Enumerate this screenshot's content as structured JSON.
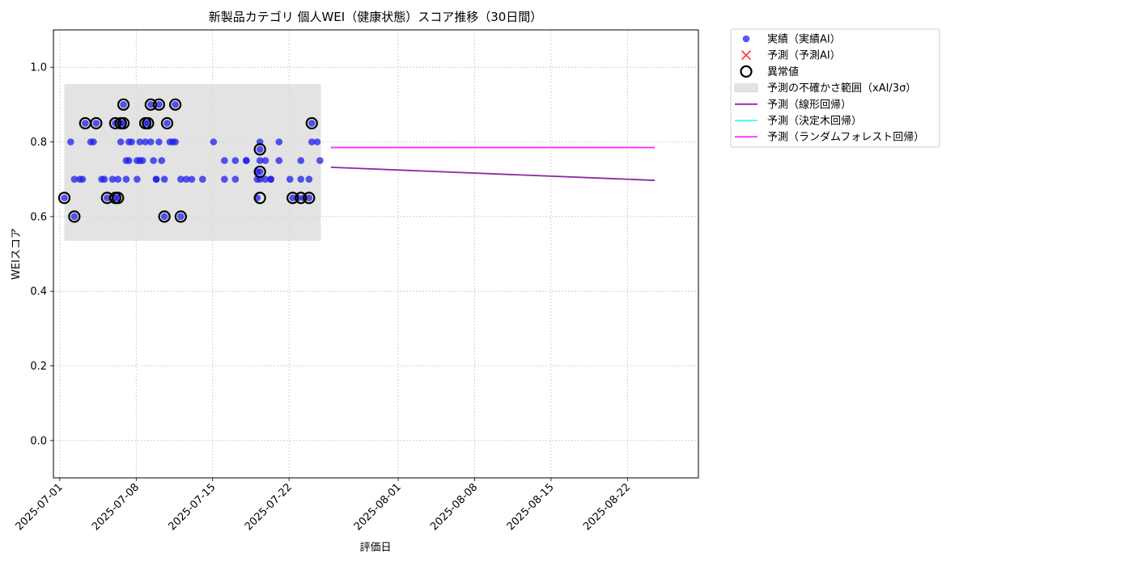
{
  "chart_data": {
    "type": "scatter",
    "title": "新製品カテゴリ 個人WEI（健康状態）スコア推移（30日間）",
    "xlabel": "評価日",
    "ylabel": "WEIスコア",
    "ylim": [
      -0.1,
      1.1
    ],
    "xlim": [
      "2025-06-30T10:00",
      "2025-08-28T12:00"
    ],
    "yticks": [
      "0.0",
      "0.2",
      "0.4",
      "0.6",
      "0.8",
      "1.0"
    ],
    "xticks": [
      "2025-07-01",
      "2025-07-08",
      "2025-07-15",
      "2025-07-22",
      "2025-08-01",
      "2025-08-08",
      "2025-08-15",
      "2025-08-22"
    ],
    "grid": true,
    "legend_position": "outside-top-right",
    "uncertainty_band": {
      "label": "予測の不確かさ範囲（xAI/3σ）",
      "x_start": "2025-07-01T10:00",
      "x_end": "2025-07-24T22:00",
      "y_low": 0.535,
      "y_high": 0.955,
      "color": "#d9d9d9"
    },
    "series": [
      {
        "name": "実績（実績AI）",
        "kind": "scatter",
        "color": "#1f1fee",
        "points": [
          [
            "2025-07-01T10:00",
            0.65
          ],
          [
            "2025-07-02T00:00",
            0.8
          ],
          [
            "2025-07-02T08:00",
            0.7
          ],
          [
            "2025-07-02T08:00",
            0.6
          ],
          [
            "2025-07-02T20:00",
            0.7
          ],
          [
            "2025-07-03T02:00",
            0.7
          ],
          [
            "2025-07-03T08:00",
            0.85
          ],
          [
            "2025-07-03T20:00",
            0.8
          ],
          [
            "2025-07-04T02:00",
            0.8
          ],
          [
            "2025-07-04T08:00",
            0.85
          ],
          [
            "2025-07-04T20:00",
            0.7
          ],
          [
            "2025-07-05T02:00",
            0.7
          ],
          [
            "2025-07-05T08:00",
            0.65
          ],
          [
            "2025-07-05T20:00",
            0.7
          ],
          [
            "2025-07-06T02:00",
            0.65
          ],
          [
            "2025-07-06T02:00",
            0.85
          ],
          [
            "2025-07-06T08:00",
            0.7
          ],
          [
            "2025-07-06T08:00",
            0.65
          ],
          [
            "2025-07-06T14:00",
            0.85
          ],
          [
            "2025-07-06T14:00",
            0.8
          ],
          [
            "2025-07-06T20:00",
            0.9
          ],
          [
            "2025-07-06T20:00",
            0.85
          ],
          [
            "2025-07-07T02:00",
            0.7
          ],
          [
            "2025-07-07T02:00",
            0.75
          ],
          [
            "2025-07-07T08:00",
            0.75
          ],
          [
            "2025-07-07T08:00",
            0.8
          ],
          [
            "2025-07-07T14:00",
            0.8
          ],
          [
            "2025-07-08T02:00",
            0.7
          ],
          [
            "2025-07-08T02:00",
            0.75
          ],
          [
            "2025-07-08T08:00",
            0.8
          ],
          [
            "2025-07-08T08:00",
            0.75
          ],
          [
            "2025-07-08T14:00",
            0.75
          ],
          [
            "2025-07-08T20:00",
            0.85
          ],
          [
            "2025-07-08T20:00",
            0.8
          ],
          [
            "2025-07-09T02:00",
            0.85
          ],
          [
            "2025-07-09T08:00",
            0.9
          ],
          [
            "2025-07-09T08:00",
            0.8
          ],
          [
            "2025-07-09T14:00",
            0.75
          ],
          [
            "2025-07-09T20:00",
            0.7
          ],
          [
            "2025-07-09T20:00",
            0.7
          ],
          [
            "2025-07-10T02:00",
            0.9
          ],
          [
            "2025-07-10T02:00",
            0.8
          ],
          [
            "2025-07-10T08:00",
            0.75
          ],
          [
            "2025-07-10T14:00",
            0.7
          ],
          [
            "2025-07-10T14:00",
            0.6
          ],
          [
            "2025-07-10T20:00",
            0.85
          ],
          [
            "2025-07-11T02:00",
            0.8
          ],
          [
            "2025-07-11T08:00",
            0.8
          ],
          [
            "2025-07-11T14:00",
            0.9
          ],
          [
            "2025-07-11T14:00",
            0.8
          ],
          [
            "2025-07-12T02:00",
            0.7
          ],
          [
            "2025-07-12T02:00",
            0.6
          ],
          [
            "2025-07-12T14:00",
            0.7
          ],
          [
            "2025-07-13T02:00",
            0.7
          ],
          [
            "2025-07-14T02:00",
            0.7
          ],
          [
            "2025-07-15T02:00",
            0.8
          ],
          [
            "2025-07-16T02:00",
            0.75
          ],
          [
            "2025-07-16T02:00",
            0.7
          ],
          [
            "2025-07-17T02:00",
            0.75
          ],
          [
            "2025-07-17T02:00",
            0.7
          ],
          [
            "2025-07-18T02:00",
            0.75
          ],
          [
            "2025-07-18T02:00",
            0.75
          ],
          [
            "2025-07-19T02:00",
            0.7
          ],
          [
            "2025-07-19T02:00",
            0.65
          ],
          [
            "2025-07-19T02:00",
            0.72
          ],
          [
            "2025-07-19T08:00",
            0.78
          ],
          [
            "2025-07-19T08:00",
            0.8
          ],
          [
            "2025-07-19T08:00",
            0.7
          ],
          [
            "2025-07-19T08:00",
            0.75
          ],
          [
            "2025-07-19T08:00",
            0.72
          ],
          [
            "2025-07-19T20:00",
            0.75
          ],
          [
            "2025-07-19T20:00",
            0.7
          ],
          [
            "2025-07-20T08:00",
            0.7
          ],
          [
            "2025-07-20T08:00",
            0.7
          ],
          [
            "2025-07-21T02:00",
            0.8
          ],
          [
            "2025-07-21T02:00",
            0.75
          ],
          [
            "2025-07-22T02:00",
            0.7
          ],
          [
            "2025-07-22T08:00",
            0.65
          ],
          [
            "2025-07-22T20:00",
            0.65
          ],
          [
            "2025-07-23T02:00",
            0.75
          ],
          [
            "2025-07-23T02:00",
            0.7
          ],
          [
            "2025-07-23T08:00",
            0.65
          ],
          [
            "2025-07-23T20:00",
            0.7
          ],
          [
            "2025-07-23T20:00",
            0.65
          ],
          [
            "2025-07-24T02:00",
            0.85
          ],
          [
            "2025-07-24T02:00",
            0.8
          ],
          [
            "2025-07-24T14:00",
            0.8
          ],
          [
            "2025-07-24T20:00",
            0.75
          ]
        ]
      },
      {
        "name": "予測（予測AI）",
        "kind": "cross",
        "color": "#ff4040",
        "points": []
      },
      {
        "name": "異常値",
        "kind": "ring",
        "color": "#000000",
        "points": [
          [
            "2025-07-01T10:00",
            0.65
          ],
          [
            "2025-07-02T08:00",
            0.6
          ],
          [
            "2025-07-03T08:00",
            0.85
          ],
          [
            "2025-07-04T08:00",
            0.85
          ],
          [
            "2025-07-05T08:00",
            0.65
          ],
          [
            "2025-07-06T02:00",
            0.65
          ],
          [
            "2025-07-06T02:00",
            0.85
          ],
          [
            "2025-07-06T08:00",
            0.65
          ],
          [
            "2025-07-06T14:00",
            0.85
          ],
          [
            "2025-07-06T20:00",
            0.9
          ],
          [
            "2025-07-06T20:00",
            0.85
          ],
          [
            "2025-07-08T20:00",
            0.85
          ],
          [
            "2025-07-09T02:00",
            0.85
          ],
          [
            "2025-07-09T08:00",
            0.9
          ],
          [
            "2025-07-10T02:00",
            0.9
          ],
          [
            "2025-07-10T14:00",
            0.6
          ],
          [
            "2025-07-10T20:00",
            0.85
          ],
          [
            "2025-07-11T14:00",
            0.9
          ],
          [
            "2025-07-12T02:00",
            0.6
          ],
          [
            "2025-07-19T08:00",
            0.78
          ],
          [
            "2025-07-19T08:00",
            0.72
          ],
          [
            "2025-07-19T08:00",
            0.65
          ],
          [
            "2025-07-22T08:00",
            0.65
          ],
          [
            "2025-07-23T02:00",
            0.65
          ],
          [
            "2025-07-23T20:00",
            0.65
          ],
          [
            "2025-07-24T02:00",
            0.85
          ]
        ]
      },
      {
        "name": "予測（線形回帰）",
        "kind": "line",
        "color": "#8b2a9c",
        "points": [
          [
            "2025-07-25T20:00",
            0.732
          ],
          [
            "2025-08-24T12:00",
            0.697
          ]
        ]
      },
      {
        "name": "予測（決定木回帰）",
        "kind": "line",
        "color": "#33ffff",
        "points": [
          [
            "2025-07-25T20:00",
            0.785
          ],
          [
            "2025-08-24T12:00",
            0.785
          ]
        ]
      },
      {
        "name": "予測（ランダムフォレスト回帰）",
        "kind": "line",
        "color": "#ff33ff",
        "points": [
          [
            "2025-07-25T20:00",
            0.785
          ],
          [
            "2025-08-24T12:00",
            0.785
          ]
        ]
      }
    ]
  }
}
